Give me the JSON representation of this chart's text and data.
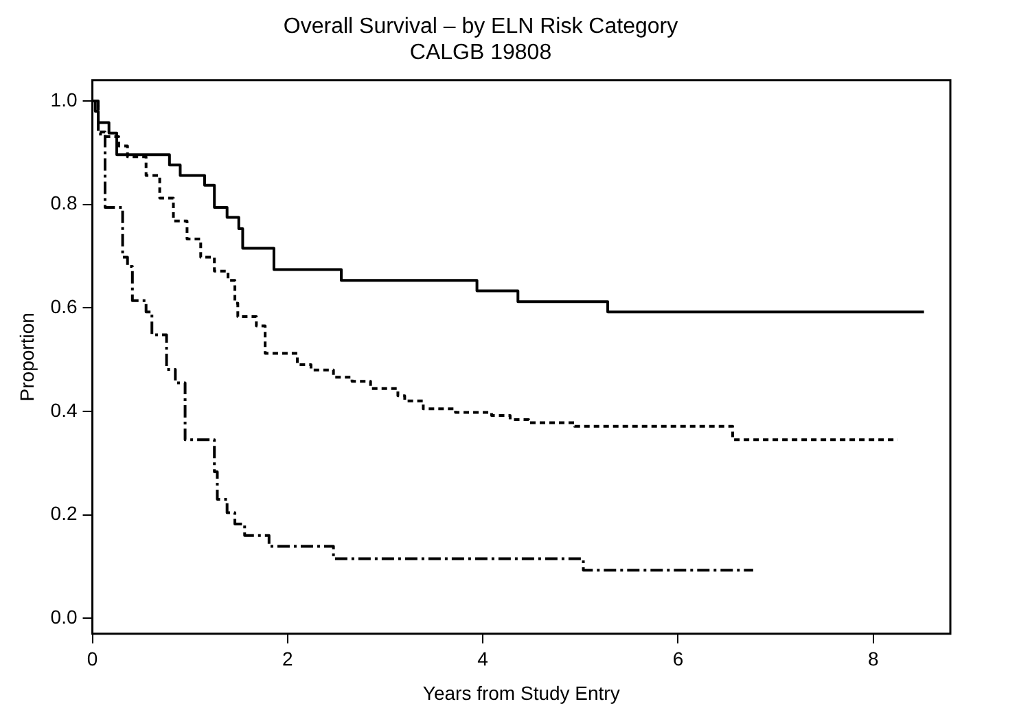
{
  "chart_data": {
    "type": "step",
    "title": "Overall Survival – by ELN Risk Category",
    "subtitle": "CALGB 19808",
    "xlabel": "Years from Study Entry",
    "ylabel": "Proportion",
    "xlim": [
      0,
      8.79
    ],
    "xticks": [
      0,
      2,
      4,
      6,
      8
    ],
    "ylim": [
      -0.03,
      1.04
    ],
    "yticks": [
      {
        "value": 0,
        "label": "0.0"
      },
      {
        "value": 0.2,
        "label": "0.2"
      },
      {
        "value": 0.4,
        "label": "0.4"
      },
      {
        "value": 0.6,
        "label": "0.6"
      },
      {
        "value": 0.8,
        "label": "0.8"
      },
      {
        "value": 1,
        "label": "1.0"
      }
    ],
    "grid": false,
    "legend": false,
    "series": [
      {
        "color": "#000000",
        "line_style": "solid",
        "x": [
          0,
          0.03,
          0.06,
          0.17,
          0.25,
          0.79,
          0.9,
          1.15,
          1.25,
          1.38,
          1.5,
          1.54,
          1.86,
          2.55,
          3.94,
          4.36,
          5.28,
          8.52
        ],
        "values": [
          1,
          0.98,
          0.958,
          0.938,
          0.896,
          0.876,
          0.856,
          0.837,
          0.794,
          0.775,
          0.753,
          0.715,
          0.674,
          0.653,
          0.633,
          0.612,
          0.592,
          0.592
        ]
      },
      {
        "color": "#000000",
        "line_style": "dotted",
        "x": [
          0,
          0.06,
          0.13,
          0.27,
          0.36,
          0.55,
          0.69,
          0.83,
          0.97,
          1.11,
          1.25,
          1.39,
          1.46,
          1.49,
          1.68,
          1.77,
          2.1,
          2.24,
          2.47,
          2.66,
          2.85,
          3.13,
          3.2,
          3.39,
          3.72,
          4.09,
          4.28,
          4.47,
          4.94,
          6.56,
          8.25
        ],
        "values": [
          1,
          0.94,
          0.931,
          0.913,
          0.892,
          0.856,
          0.812,
          0.768,
          0.733,
          0.698,
          0.671,
          0.653,
          0.609,
          0.583,
          0.565,
          0.512,
          0.49,
          0.48,
          0.466,
          0.458,
          0.444,
          0.43,
          0.42,
          0.405,
          0.398,
          0.392,
          0.384,
          0.378,
          0.371,
          0.345,
          0.345
        ]
      },
      {
        "color": "#000000",
        "line_style": "dashed",
        "x": [
          0,
          0.06,
          0.13,
          0.31,
          0.36,
          0.41,
          0.55,
          0.61,
          0.76,
          0.85,
          0.95,
          1.25,
          1.28,
          1.38,
          1.46,
          1.56,
          1.81,
          2.47,
          5.03,
          6.77
        ],
        "values": [
          1,
          0.936,
          0.794,
          0.698,
          0.68,
          0.614,
          0.592,
          0.548,
          0.481,
          0.455,
          0.345,
          0.283,
          0.23,
          0.204,
          0.182,
          0.16,
          0.139,
          0.115,
          0.093,
          0.093
        ]
      }
    ]
  }
}
